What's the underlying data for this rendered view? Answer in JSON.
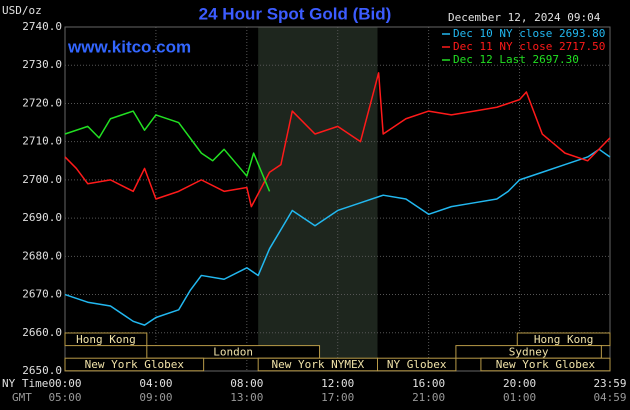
{
  "chart_data": {
    "type": "line",
    "title": "24 Hour Spot Gold (Bid)",
    "unit_label": "USD/oz",
    "date_label": "December 12, 2024 09:04",
    "source": "www.kitco.com",
    "x_label": "NY Time",
    "x2_label": "GMT",
    "xlim": [
      0,
      23.98
    ],
    "xticks": [
      {
        "value": 0,
        "label": "00:00"
      },
      {
        "value": 4,
        "label": "04:00"
      },
      {
        "value": 8,
        "label": "08:00"
      },
      {
        "value": 12,
        "label": "12:00"
      },
      {
        "value": 16,
        "label": "16:00"
      },
      {
        "value": 20,
        "label": "20:00"
      },
      {
        "value": 23.98,
        "label": "23:59"
      }
    ],
    "x2ticks": [
      {
        "value": 0,
        "label": "05:00"
      },
      {
        "value": 4,
        "label": "09:00"
      },
      {
        "value": 8,
        "label": "13:00"
      },
      {
        "value": 12,
        "label": "17:00"
      },
      {
        "value": 16,
        "label": "21:00"
      },
      {
        "value": 20,
        "label": "01:00"
      },
      {
        "value": 23.98,
        "label": "04:59"
      }
    ],
    "ylim": [
      2650,
      2740
    ],
    "yticks": [
      {
        "value": 2650,
        "label": "2650.0"
      },
      {
        "value": 2660,
        "label": "2660.0"
      },
      {
        "value": 2670,
        "label": "2670.0"
      },
      {
        "value": 2680,
        "label": "2680.0"
      },
      {
        "value": 2690,
        "label": "2690.0"
      },
      {
        "value": 2700,
        "label": "2700.0"
      },
      {
        "value": 2710,
        "label": "2710.0"
      },
      {
        "value": 2720,
        "label": "2720.0"
      },
      {
        "value": 2730,
        "label": "2730.0"
      },
      {
        "value": 2740,
        "label": "2740.0"
      }
    ],
    "grid": true,
    "legend": "top-right",
    "highlight_x": [
      8.5,
      13.75
    ],
    "series": [
      {
        "name": "Dec 10 NY close 2693.80",
        "color": "#22b8f0",
        "x": [
          0,
          1,
          2,
          3,
          3.5,
          4,
          5,
          5.5,
          6,
          7,
          8,
          8.5,
          9,
          9.5,
          10,
          10.5,
          11,
          12,
          13,
          14,
          15,
          15.5,
          16,
          17,
          18,
          19,
          19.5,
          20,
          21,
          22,
          23,
          23.5,
          23.98
        ],
        "values": [
          2670,
          2668,
          2667,
          2663,
          2662,
          2664,
          2666,
          2671,
          2675,
          2674,
          2677,
          2675,
          2682,
          2687,
          2692,
          2690,
          2688,
          2692,
          2694,
          2696,
          2695,
          2693,
          2691,
          2693,
          2694,
          2695,
          2697,
          2700,
          2702,
          2704,
          2706,
          2708,
          2706
        ]
      },
      {
        "name": "Dec 11 NY close 2717.50",
        "color": "#ff1a1a",
        "x": [
          0,
          0.5,
          1,
          2,
          3,
          3.5,
          4,
          5,
          6,
          7,
          8,
          8.2,
          9,
          9.5,
          10,
          11,
          12,
          13,
          13.8,
          14,
          15,
          16,
          17,
          18,
          19,
          20,
          20.3,
          21,
          22,
          23,
          23.98
        ],
        "values": [
          2706,
          2703,
          2699,
          2700,
          2697,
          2703,
          2695,
          2697,
          2700,
          2697,
          2698,
          2693,
          2702,
          2704,
          2718,
          2712,
          2714,
          2710,
          2728,
          2712,
          2716,
          2718,
          2717,
          2718,
          2719,
          2721,
          2723,
          2712,
          2707,
          2705,
          2711
        ]
      },
      {
        "name": "Dec 12 Last 2697.30",
        "color": "#22e022",
        "x": [
          0,
          1,
          1.5,
          2,
          3,
          3.5,
          4,
          5,
          6,
          6.5,
          7,
          8,
          8.3,
          9
        ],
        "values": [
          2712,
          2714,
          2711,
          2716,
          2718,
          2713,
          2717,
          2715,
          2707,
          2705,
          2708,
          2701,
          2707,
          2697
        ]
      }
    ],
    "session_rows": [
      [
        {
          "label": "Hong Kong",
          "start": 0,
          "end": 3.6
        },
        {
          "label": "Hong Kong",
          "start": 19.9,
          "end": 23.98
        }
      ],
      [
        {
          "label": "London",
          "start": 3.6,
          "end": 11.2
        },
        {
          "label": "Sydney",
          "start": 17.2,
          "end": 23.6
        }
      ],
      [
        {
          "label": "New York Globex",
          "start": 0,
          "end": 6.1
        },
        {
          "label": "New York NYMEX",
          "start": 8.5,
          "end": 13.75
        },
        {
          "label": "NY Globex",
          "start": 13.75,
          "end": 17.2
        },
        {
          "label": "New York Globex",
          "start": 18.3,
          "end": 23.98
        }
      ]
    ]
  }
}
